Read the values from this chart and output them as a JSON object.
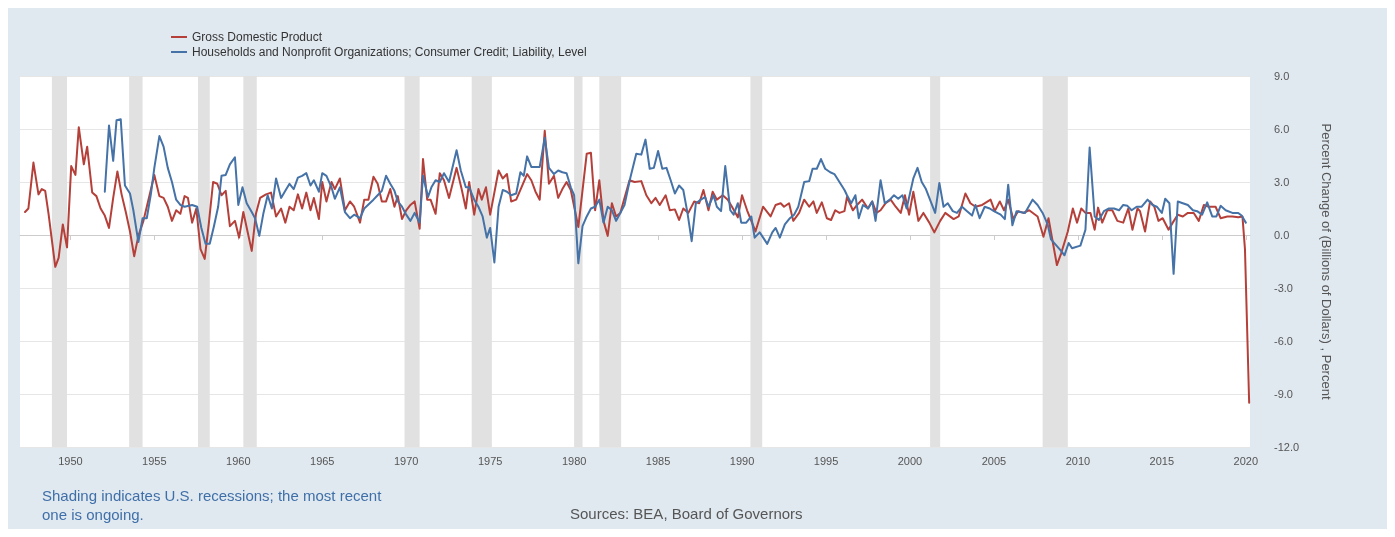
{
  "chart_data": {
    "type": "line",
    "ylabel": "Percent Change of (Billions of Dollars) , Percent",
    "legend": "top left",
    "grid": "y",
    "line_style": "solid",
    "marker": "none",
    "xlim": [
      1947,
      2020.25
    ],
    "xticks": [
      1950,
      1955,
      1960,
      1965,
      1970,
      1975,
      1980,
      1985,
      1990,
      1995,
      2000,
      2005,
      2010,
      2015,
      2020
    ],
    "ylim": [
      -12,
      9
    ],
    "yticks": [
      {
        "value": -12,
        "label": "-12.0"
      },
      {
        "value": -9,
        "label": "-9.0"
      },
      {
        "value": -6,
        "label": "-6.0"
      },
      {
        "value": -3,
        "label": "-3.0"
      },
      {
        "value": 0,
        "label": "0.0"
      },
      {
        "value": 3,
        "label": "3.0"
      },
      {
        "value": 6,
        "label": "6.0"
      },
      {
        "value": 9,
        "label": "9.0"
      }
    ],
    "bands": [
      {
        "axis": "x",
        "from": 1948.9,
        "to": 1949.8,
        "color": "#e1e1e1"
      },
      {
        "axis": "x",
        "from": 1953.5,
        "to": 1954.3,
        "color": "#e1e1e1"
      },
      {
        "axis": "x",
        "from": 1957.6,
        "to": 1958.3,
        "color": "#e1e1e1"
      },
      {
        "axis": "x",
        "from": 1960.3,
        "to": 1961.1,
        "color": "#e1e1e1"
      },
      {
        "axis": "x",
        "from": 1969.9,
        "to": 1970.8,
        "color": "#e1e1e1"
      },
      {
        "axis": "x",
        "from": 1973.9,
        "to": 1975.1,
        "color": "#e1e1e1"
      },
      {
        "axis": "x",
        "from": 1980.0,
        "to": 1980.5,
        "color": "#e1e1e1"
      },
      {
        "axis": "x",
        "from": 1981.5,
        "to": 1982.8,
        "color": "#e1e1e1"
      },
      {
        "axis": "x",
        "from": 1990.5,
        "to": 1991.2,
        "color": "#e1e1e1"
      },
      {
        "axis": "x",
        "from": 2001.2,
        "to": 2001.8,
        "color": "#e1e1e1"
      },
      {
        "axis": "x",
        "from": 2007.9,
        "to": 2009.4,
        "color": "#e1e1e1"
      }
    ],
    "annotations": [
      "Shading indicates U.S. recessions; the most recent one is ongoing.",
      "Sources: BEA, Board of Governors"
    ],
    "series": [
      {
        "name": "Gross Domestic Product",
        "color": "#b5403a",
        "x": [
          1947.3,
          1947.5,
          1947.8,
          1948.1,
          1948.3,
          1948.5,
          1948.7,
          1949.1,
          1949.3,
          1949.55,
          1949.8,
          1950.05,
          1950.3,
          1950.5,
          1950.8,
          1951.0,
          1951.3,
          1951.55,
          1951.8,
          1952.05,
          1952.3,
          1952.55,
          1952.8,
          1953.05,
          1953.3,
          1953.55,
          1953.8,
          1954.05,
          1954.35,
          1955.0,
          1955.3,
          1955.55,
          1955.8,
          1956.05,
          1956.3,
          1956.55,
          1956.8,
          1957.0,
          1957.25,
          1957.5,
          1957.75,
          1958.0,
          1958.25,
          1958.5,
          1958.75,
          1959.0,
          1959.25,
          1959.5,
          1959.8,
          1960.05,
          1960.3,
          1960.55,
          1960.8,
          1961.05,
          1961.3,
          1961.65,
          1961.95,
          1962.25,
          1962.55,
          1962.8,
          1963.05,
          1963.3,
          1963.55,
          1963.8,
          1964.05,
          1964.3,
          1964.5,
          1964.8,
          1965.0,
          1965.25,
          1965.55,
          1965.75,
          1966.05,
          1966.35,
          1966.65,
          1966.9,
          1967.25,
          1967.5,
          1967.75,
          1968.05,
          1968.3,
          1968.55,
          1968.8,
          1969.05,
          1969.3,
          1969.5,
          1969.75,
          1970.0,
          1970.25,
          1970.5,
          1970.8,
          1971.0,
          1971.25,
          1971.45,
          1971.75,
          1972.0,
          1972.25,
          1972.55,
          1973.0,
          1973.3,
          1973.55,
          1973.75,
          1974.05,
          1974.3,
          1974.5,
          1974.75,
          1975.0,
          1975.5,
          1975.75,
          1976.0,
          1976.25,
          1976.55,
          1976.8,
          1977.2,
          1977.45,
          1977.7,
          1977.95,
          1978.25,
          1978.5,
          1978.8,
          1979.05,
          1979.3,
          1979.55,
          1979.8,
          1980.25,
          1980.75,
          1981.0,
          1981.25,
          1981.5,
          1981.75,
          1982.0,
          1982.25,
          1982.5,
          1982.75,
          1983.0,
          1983.3,
          1983.6,
          1984.0,
          1984.3,
          1984.6,
          1984.85,
          1985.1,
          1985.45,
          1985.7,
          1986.0,
          1986.25,
          1986.5,
          1986.8,
          1987.15,
          1987.45,
          1987.7,
          1988.0,
          1988.25,
          1988.5,
          1988.85,
          1989.15,
          1989.4,
          1989.75,
          1990.0,
          1990.3,
          1990.8,
          1991.25,
          1991.7,
          1992.0,
          1992.3,
          1992.5,
          1992.8,
          1993.05,
          1993.4,
          1993.7,
          1994.0,
          1994.25,
          1994.45,
          1994.75,
          1995.05,
          1995.3,
          1995.55,
          1995.8,
          1996.1,
          1996.25,
          1996.6,
          1996.85,
          1997.15,
          1997.5,
          1997.75,
          1998.0,
          1998.25,
          1998.55,
          1998.85,
          1999.15,
          1999.45,
          1999.7,
          1999.95,
          2000.2,
          2000.5,
          2000.8,
          2001.15,
          2001.45,
          2001.8,
          2002.1,
          2002.6,
          2002.9,
          2003.3,
          2003.6,
          2003.9,
          2004.3,
          2004.8,
          2005.05,
          2005.35,
          2005.6,
          2005.85,
          2006.15,
          2006.45,
          2006.75,
          2007.1,
          2007.6,
          2007.95,
          2008.25,
          2008.75,
          2009.0,
          2009.4,
          2009.7,
          2009.95,
          2010.2,
          2010.45,
          2010.75,
          2011.0,
          2011.2,
          2011.45,
          2011.75,
          2012.05,
          2012.35,
          2012.7,
          2013.0,
          2013.25,
          2013.55,
          2013.7,
          2014.0,
          2014.3,
          2014.55,
          2014.8,
          2015.05,
          2015.4,
          2015.65,
          2015.95,
          2016.25,
          2016.55,
          2016.9,
          2017.2,
          2017.5,
          2017.8,
          2018.2,
          2018.5,
          2018.9,
          2019.2,
          2019.55,
          2019.8,
          2019.95,
          2020.2
        ],
        "values": [
          1.3,
          1.5,
          4.1,
          2.3,
          2.6,
          2.5,
          1.2,
          -1.8,
          -1.3,
          0.6,
          -0.7,
          3.9,
          3.4,
          6.1,
          4.0,
          5.0,
          2.4,
          2.2,
          1.5,
          1.1,
          0.4,
          2.1,
          3.6,
          2.3,
          1.3,
          0.2,
          -1.2,
          -0.05,
          0.8,
          3.4,
          2.2,
          2.1,
          1.6,
          0.8,
          1.4,
          1.2,
          2.2,
          2.1,
          0.7,
          1.5,
          -0.8,
          -1.35,
          0.7,
          3.0,
          2.9,
          2.25,
          2.5,
          0.5,
          0.8,
          -0.15,
          1.3,
          0.2,
          -0.9,
          1.2,
          2.1,
          2.3,
          2.4,
          1.05,
          1.5,
          0.7,
          1.6,
          1.4,
          2.3,
          1.5,
          2.4,
          1.4,
          2.1,
          0.9,
          3.0,
          1.9,
          3.0,
          2.6,
          3.2,
          1.4,
          1.9,
          1.6,
          0.7,
          2.0,
          2.0,
          3.3,
          2.9,
          1.9,
          1.9,
          2.6,
          1.6,
          2.2,
          0.9,
          1.4,
          1.7,
          1.9,
          0.35,
          4.3,
          2.0,
          2.0,
          1.2,
          3.5,
          3.1,
          2.1,
          3.8,
          2.6,
          1.5,
          3.0,
          1.15,
          2.6,
          2.0,
          2.7,
          1.15,
          3.65,
          3.2,
          3.45,
          1.9,
          2.0,
          2.55,
          3.45,
          3.1,
          2.45,
          2.0,
          5.9,
          2.9,
          3.35,
          2.1,
          2.6,
          3.0,
          2.55,
          0.45,
          4.6,
          4.65,
          1.4,
          3.1,
          0.8,
          -0.05,
          1.8,
          1.05,
          1.25,
          2.1,
          3.1,
          3.0,
          3.05,
          2.25,
          1.8,
          2.1,
          1.7,
          2.25,
          1.4,
          1.45,
          0.85,
          1.5,
          1.25,
          1.9,
          1.8,
          2.55,
          1.4,
          2.45,
          2.0,
          2.25,
          2.0,
          1.6,
          1.0,
          2.25,
          1.4,
          0.2,
          1.6,
          1.05,
          1.7,
          1.8,
          1.6,
          1.8,
          0.8,
          1.25,
          2.0,
          1.6,
          1.9,
          1.25,
          1.85,
          0.95,
          0.85,
          1.4,
          1.25,
          1.35,
          2.15,
          1.4,
          1.7,
          2.0,
          1.5,
          1.9,
          1.25,
          1.4,
          1.8,
          2.0,
          1.6,
          1.25,
          2.25,
          1.15,
          2.45,
          0.8,
          1.25,
          0.7,
          0.15,
          0.8,
          1.25,
          0.9,
          1.05,
          2.35,
          1.8,
          1.6,
          1.7,
          2.0,
          1.35,
          1.9,
          1.4,
          2.0,
          0.9,
          1.35,
          1.25,
          1.4,
          1.05,
          -0.1,
          0.95,
          -1.7,
          -1.05,
          0.2,
          1.5,
          0.7,
          1.5,
          1.25,
          1.25,
          0.3,
          1.55,
          0.7,
          1.4,
          1.4,
          0.8,
          0.7,
          1.5,
          0.3,
          1.5,
          1.35,
          0.2,
          1.9,
          1.6,
          0.8,
          0.95,
          0.3,
          0.7,
          1.15,
          1.05,
          1.25,
          1.25,
          0.8,
          1.7,
          1.6,
          1.6,
          0.95,
          1.05,
          1.05,
          1.0,
          1.05,
          -0.8,
          -9.5
        ]
      },
      {
        "name": "Households and Nonprofit Organizations; Consumer Credit; Liability, Level",
        "color": "#4572a7",
        "x": [
          1952.05,
          1952.3,
          1952.55,
          1952.75,
          1953.0,
          1953.25,
          1953.55,
          1953.75,
          1954.05,
          1954.3,
          1954.55,
          1954.8,
          1955.0,
          1955.3,
          1955.55,
          1955.8,
          1956.05,
          1956.3,
          1956.55,
          1956.8,
          1957.25,
          1957.55,
          1957.8,
          1958.05,
          1958.3,
          1958.55,
          1958.8,
          1959.0,
          1959.25,
          1959.5,
          1959.8,
          1960.0,
          1960.25,
          1960.5,
          1960.8,
          1961.0,
          1961.25,
          1961.5,
          1961.75,
          1962.0,
          1962.25,
          1962.55,
          1962.8,
          1963.05,
          1963.3,
          1963.55,
          1963.8,
          1964.05,
          1964.3,
          1964.5,
          1964.8,
          1965.0,
          1965.25,
          1965.55,
          1965.75,
          1966.05,
          1966.35,
          1966.65,
          1966.9,
          1967.25,
          1967.5,
          1968.05,
          1968.3,
          1968.55,
          1968.8,
          1969.05,
          1969.3,
          1969.5,
          1969.75,
          1970.0,
          1970.25,
          1970.5,
          1970.8,
          1971.0,
          1971.3,
          1971.5,
          1971.75,
          1972.0,
          1972.25,
          1972.55,
          1973.0,
          1973.25,
          1973.55,
          1973.75,
          1974.05,
          1974.3,
          1974.55,
          1974.8,
          1975.0,
          1975.25,
          1975.5,
          1975.75,
          1976.0,
          1976.25,
          1976.55,
          1976.8,
          1977.0,
          1977.2,
          1977.45,
          1977.95,
          1978.25,
          1978.5,
          1978.8,
          1979.05,
          1979.3,
          1979.55,
          1979.8,
          1980.0,
          1980.25,
          1980.5,
          1980.75,
          1981.0,
          1981.25,
          1981.5,
          1981.75,
          1982.0,
          1982.25,
          1982.5,
          1982.75,
          1983.0,
          1983.35,
          1983.7,
          1984.0,
          1984.25,
          1984.5,
          1984.75,
          1985.0,
          1985.25,
          1985.5,
          1985.75,
          1986.0,
          1986.25,
          1986.5,
          1986.75,
          1987.0,
          1987.25,
          1987.55,
          1987.8,
          1988.0,
          1988.3,
          1988.5,
          1988.75,
          1989.0,
          1989.3,
          1989.5,
          1989.75,
          1989.95,
          1990.25,
          1990.55,
          1990.75,
          1991.05,
          1991.5,
          1991.8,
          1992.0,
          1992.25,
          1992.55,
          1992.85,
          1993.1,
          1993.35,
          1993.7,
          1994.0,
          1994.2,
          1994.45,
          1994.7,
          1994.95,
          1995.25,
          1995.5,
          1995.8,
          1996.1,
          1996.25,
          1996.5,
          1996.75,
          1996.95,
          1997.2,
          1997.5,
          1997.75,
          1997.95,
          1998.25,
          1998.5,
          1998.8,
          1999.05,
          1999.3,
          1999.55,
          1999.8,
          2000.2,
          2000.45,
          2000.7,
          2000.95,
          2001.5,
          2001.75,
          2002.0,
          2002.25,
          2002.55,
          2002.8,
          2003.1,
          2003.4,
          2003.7,
          2003.9,
          2004.15,
          2004.45,
          2004.75,
          2005.0,
          2005.4,
          2005.65,
          2005.85,
          2006.1,
          2006.35,
          2006.85,
          2007.3,
          2007.6,
          2007.9,
          2008.2,
          2008.4,
          2009.0,
          2009.2,
          2009.45,
          2009.65,
          2010.15,
          2010.45,
          2010.7,
          2011.0,
          2011.25,
          2011.55,
          2011.85,
          2012.15,
          2012.45,
          2012.7,
          2012.95,
          2013.2,
          2013.5,
          2013.8,
          2014.15,
          2014.45,
          2014.7,
          2015.0,
          2015.2,
          2015.45,
          2015.7,
          2015.95,
          2016.25,
          2016.55,
          2016.85,
          2017.1,
          2017.4,
          2017.7,
          2018.0,
          2018.25,
          2018.5,
          2018.8,
          2019.2,
          2019.55,
          2019.75,
          2020.0
        ],
        "values": [
          2.45,
          6.2,
          4.2,
          6.5,
          6.55,
          2.8,
          2.35,
          1.4,
          -0.4,
          0.95,
          0.95,
          2.35,
          3.8,
          5.6,
          5.0,
          3.8,
          3.0,
          2.0,
          1.7,
          1.6,
          1.7,
          1.6,
          0.4,
          -0.5,
          -0.5,
          0.5,
          1.6,
          3.35,
          3.4,
          4.0,
          4.4,
          1.7,
          2.7,
          1.8,
          1.3,
          0.95,
          -0.05,
          1.25,
          2.25,
          1.5,
          3.2,
          2.1,
          2.5,
          2.9,
          2.6,
          3.25,
          3.35,
          3.5,
          2.8,
          3.1,
          2.45,
          3.5,
          3.35,
          2.7,
          2.05,
          2.7,
          1.3,
          0.95,
          1.15,
          0.95,
          1.5,
          2.0,
          2.25,
          2.5,
          3.35,
          2.9,
          2.5,
          1.9,
          1.6,
          1.15,
          0.8,
          1.25,
          0.7,
          3.35,
          2.15,
          2.7,
          3.1,
          3.0,
          3.5,
          3.0,
          4.8,
          3.65,
          2.7,
          2.7,
          2.0,
          1.6,
          1.05,
          -0.15,
          0.4,
          -1.55,
          1.6,
          2.55,
          2.45,
          2.25,
          2.35,
          3.55,
          3.35,
          4.45,
          3.85,
          3.85,
          5.5,
          3.8,
          3.45,
          3.65,
          3.55,
          3.5,
          2.7,
          2.25,
          -1.6,
          0.5,
          1.05,
          1.5,
          1.6,
          2.0,
          0.7,
          1.6,
          1.4,
          0.8,
          1.25,
          1.7,
          3.25,
          4.6,
          4.55,
          5.4,
          3.75,
          3.8,
          4.75,
          3.75,
          3.8,
          3.1,
          2.35,
          2.8,
          2.55,
          1.25,
          -0.35,
          1.8,
          2.0,
          2.15,
          1.6,
          2.25,
          1.6,
          1.35,
          3.9,
          1.4,
          1.15,
          1.8,
          0.7,
          0.7,
          1.05,
          -0.15,
          0.15,
          -0.5,
          0.15,
          0.4,
          -0.15,
          0.6,
          0.95,
          1.15,
          1.6,
          3.0,
          3.05,
          3.75,
          3.75,
          4.3,
          3.75,
          3.55,
          3.45,
          3.0,
          2.55,
          2.25,
          1.8,
          2.25,
          0.95,
          1.7,
          1.5,
          1.9,
          0.8,
          3.1,
          1.8,
          2.0,
          2.25,
          2.05,
          2.25,
          1.5,
          3.2,
          3.8,
          3.0,
          2.6,
          1.25,
          2.95,
          1.6,
          1.8,
          1.35,
          1.25,
          1.6,
          1.35,
          1.1,
          1.7,
          0.95,
          1.6,
          1.5,
          1.35,
          1.15,
          0.9,
          2.85,
          0.55,
          1.35,
          1.25,
          2.0,
          1.7,
          1.25,
          0.6,
          -0.25,
          -0.9,
          -1.15,
          -0.45,
          -0.75,
          -0.6,
          0.3,
          4.95,
          1.05,
          0.85,
          1.35,
          1.5,
          1.5,
          1.4,
          1.7,
          1.65,
          1.4,
          1.6,
          1.6,
          2.0,
          1.7,
          1.6,
          1.25,
          2.05,
          1.8,
          -2.2,
          1.9,
          1.8,
          1.7,
          1.4,
          1.35,
          1.15,
          1.85,
          1.05,
          1.05,
          1.65,
          1.4,
          1.25,
          1.25,
          1.1,
          0.7
        ]
      }
    ]
  }
}
